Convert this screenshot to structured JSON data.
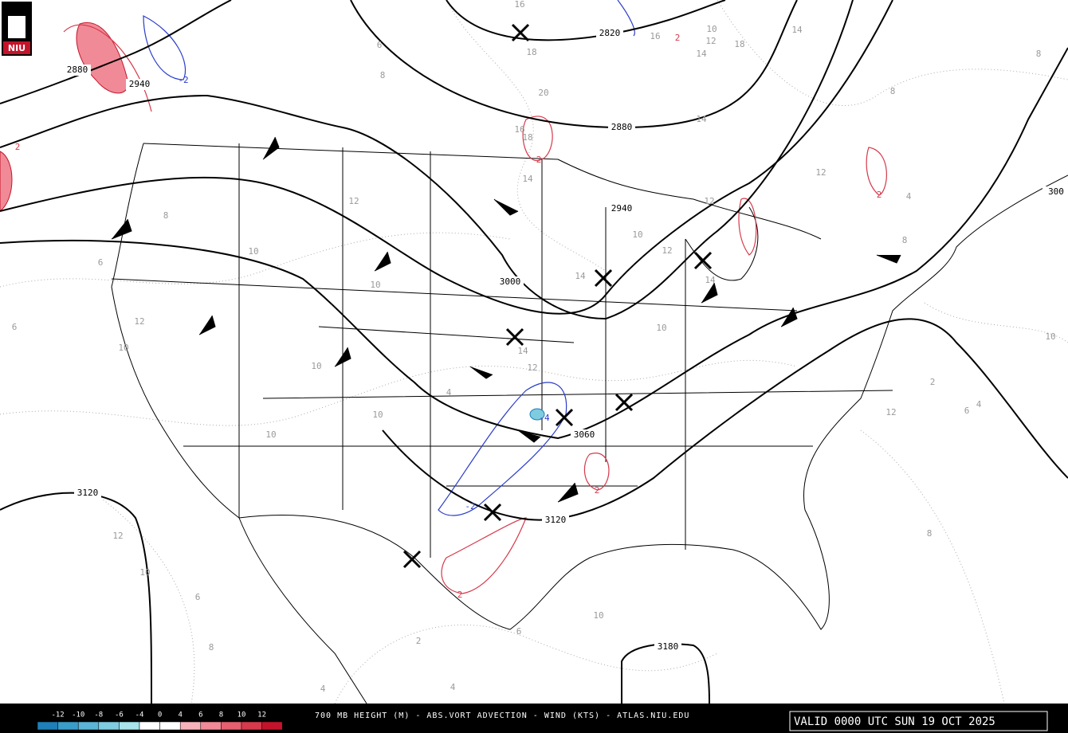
{
  "logo": "NIU",
  "title": "700 MB HEIGHT (M) - ABS.VORT ADVECTION - WIND (KTS) - ATLAS.NIU.EDU",
  "valid": "VALID 0000 UTC SUN 19 OCT 2025",
  "colorbar": {
    "ticks": [
      -12,
      -10,
      -8,
      -6,
      -4,
      0,
      4,
      6,
      8,
      10,
      12
    ],
    "colors": [
      "#1f7fb8",
      "#3a9cc9",
      "#5bb5d6",
      "#7fcbe0",
      "#a8e4ea",
      "#ffffff",
      "#ffffff",
      "#f7b3bb",
      "#f08a96",
      "#e6606f",
      "#d63a4c",
      "#c4142b"
    ]
  },
  "height_labels": [
    "2820",
    "2880",
    "2940",
    "2880",
    "2940",
    "3000",
    "3060",
    "3120",
    "3120",
    "3180",
    "300"
  ],
  "isotach_labels": [
    "16",
    "18",
    "20",
    "16",
    "18",
    "14",
    "14",
    "14",
    "12",
    "12",
    "10",
    "12",
    "14",
    "14",
    "10",
    "14",
    "12",
    "4",
    "10",
    "10",
    "10",
    "10",
    "12",
    "10",
    "12",
    "10",
    "8",
    "6",
    "6",
    "8",
    "6",
    "12",
    "10",
    "6",
    "8",
    "2",
    "4",
    "6",
    "10",
    "4",
    "8",
    "2",
    "6",
    "4",
    "10",
    "12",
    "8",
    "14",
    "10",
    "12",
    "16",
    "18",
    "8",
    "4",
    "8"
  ],
  "advection_labels": [
    "2",
    "2",
    "2",
    "2",
    "2",
    "2",
    "-2",
    "-4",
    "-2"
  ]
}
